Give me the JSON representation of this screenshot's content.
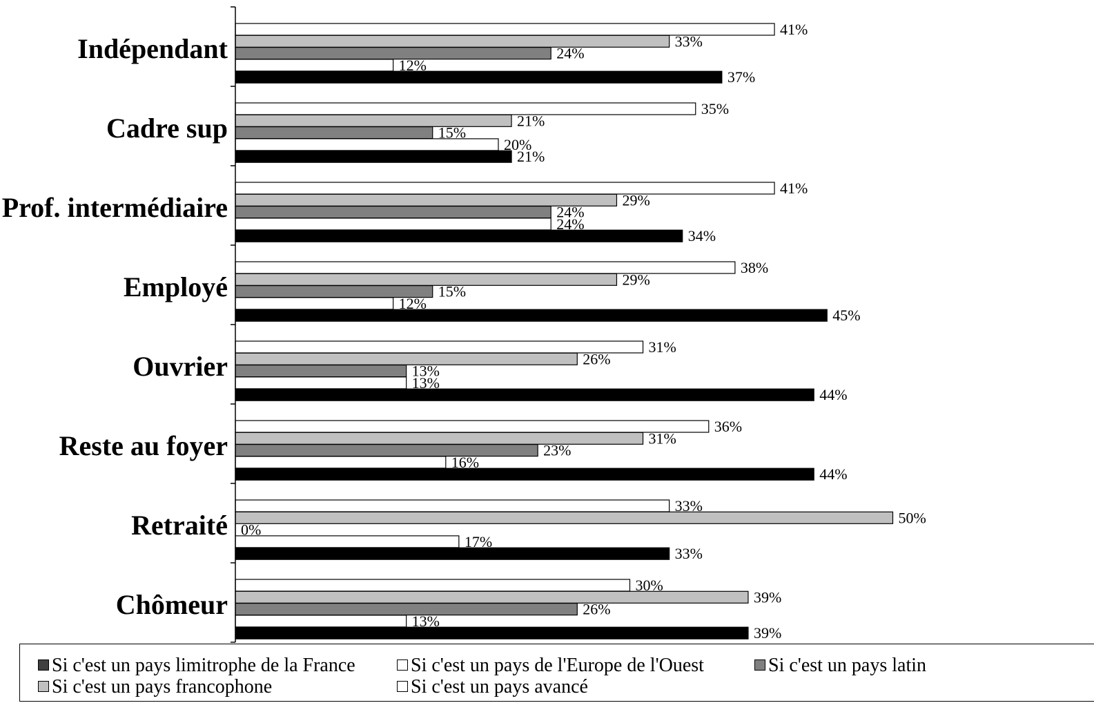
{
  "chart_data": {
    "type": "bar",
    "orientation": "horizontal",
    "categories": [
      "Indépendant",
      "Cadre sup",
      "Prof. intermédiaire",
      "Employé",
      "Ouvrier",
      "Reste au foyer",
      "Retraité",
      "Chômeur"
    ],
    "series": [
      {
        "name": "Si c'est un pays de l'Europe de l'Ouest",
        "color": "#ffffff",
        "values": [
          41,
          35,
          41,
          38,
          31,
          36,
          33,
          30
        ]
      },
      {
        "name": "Si c'est un pays francophone",
        "color": "#c0c0c0",
        "values": [
          33,
          21,
          29,
          29,
          26,
          31,
          50,
          39
        ]
      },
      {
        "name": "Si c'est un pays latin",
        "color": "#808080",
        "values": [
          24,
          15,
          24,
          15,
          13,
          23,
          0,
          26
        ]
      },
      {
        "name": "Si c'est un pays avancé",
        "color": "#ffffff",
        "values": [
          12,
          20,
          24,
          12,
          13,
          16,
          17,
          13
        ]
      },
      {
        "name": "Si c'est un pays limitrophe de la France",
        "color": "#000000",
        "values": [
          37,
          21,
          34,
          45,
          44,
          44,
          33,
          39
        ]
      }
    ],
    "value_suffix": "%",
    "xlim": [
      0,
      50
    ],
    "grid": false,
    "legend_position": "bottom"
  },
  "legend": {
    "row1": [
      "Si c'est un pays limitrophe de la France",
      "Si c'est un pays de l'Europe de l'Ouest",
      "Si c'est un pays latin"
    ],
    "row2": [
      "Si c'est un pays francophone",
      "Si c'est un pays avancé"
    ]
  }
}
